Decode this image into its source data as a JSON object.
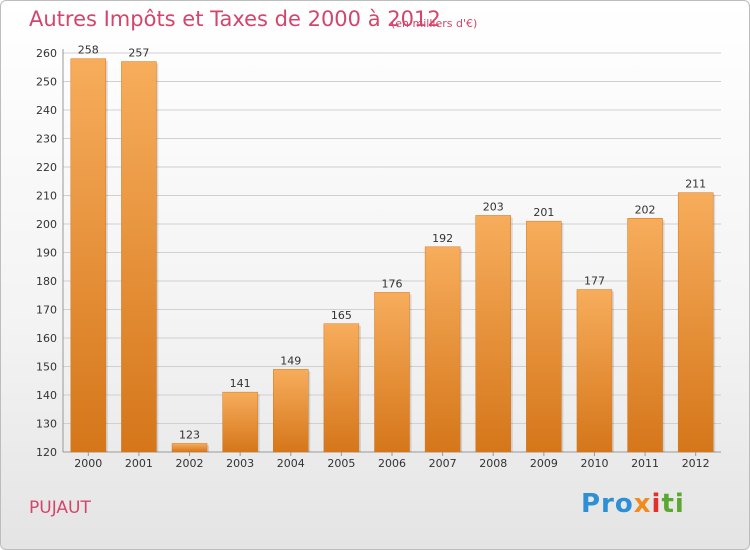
{
  "chart_data": {
    "type": "bar",
    "title": "Autres Impôts et Taxes de 2000 à 2012",
    "subtitle": "(en milliers d'€)",
    "categories": [
      "2000",
      "2001",
      "2002",
      "2003",
      "2004",
      "2005",
      "2006",
      "2007",
      "2008",
      "2009",
      "2010",
      "2011",
      "2012"
    ],
    "values": [
      258,
      257,
      123,
      141,
      149,
      165,
      176,
      192,
      203,
      201,
      177,
      202,
      211
    ],
    "ylim": [
      120,
      260
    ],
    "yticks": [
      120,
      130,
      140,
      150,
      160,
      170,
      180,
      190,
      200,
      210,
      220,
      230,
      240,
      250,
      260
    ],
    "grid": true,
    "legend": "none",
    "colors": {
      "bar": "#f0922e",
      "bar_light": "#f7ad5c",
      "bar_dark": "#d5761a",
      "grid": "#d0d0d0",
      "title": "#d4456c"
    }
  },
  "location": "PUJAUT",
  "logo": {
    "part1": "Pro",
    "part2": "x",
    "part3": "i",
    "part4": "ti"
  }
}
